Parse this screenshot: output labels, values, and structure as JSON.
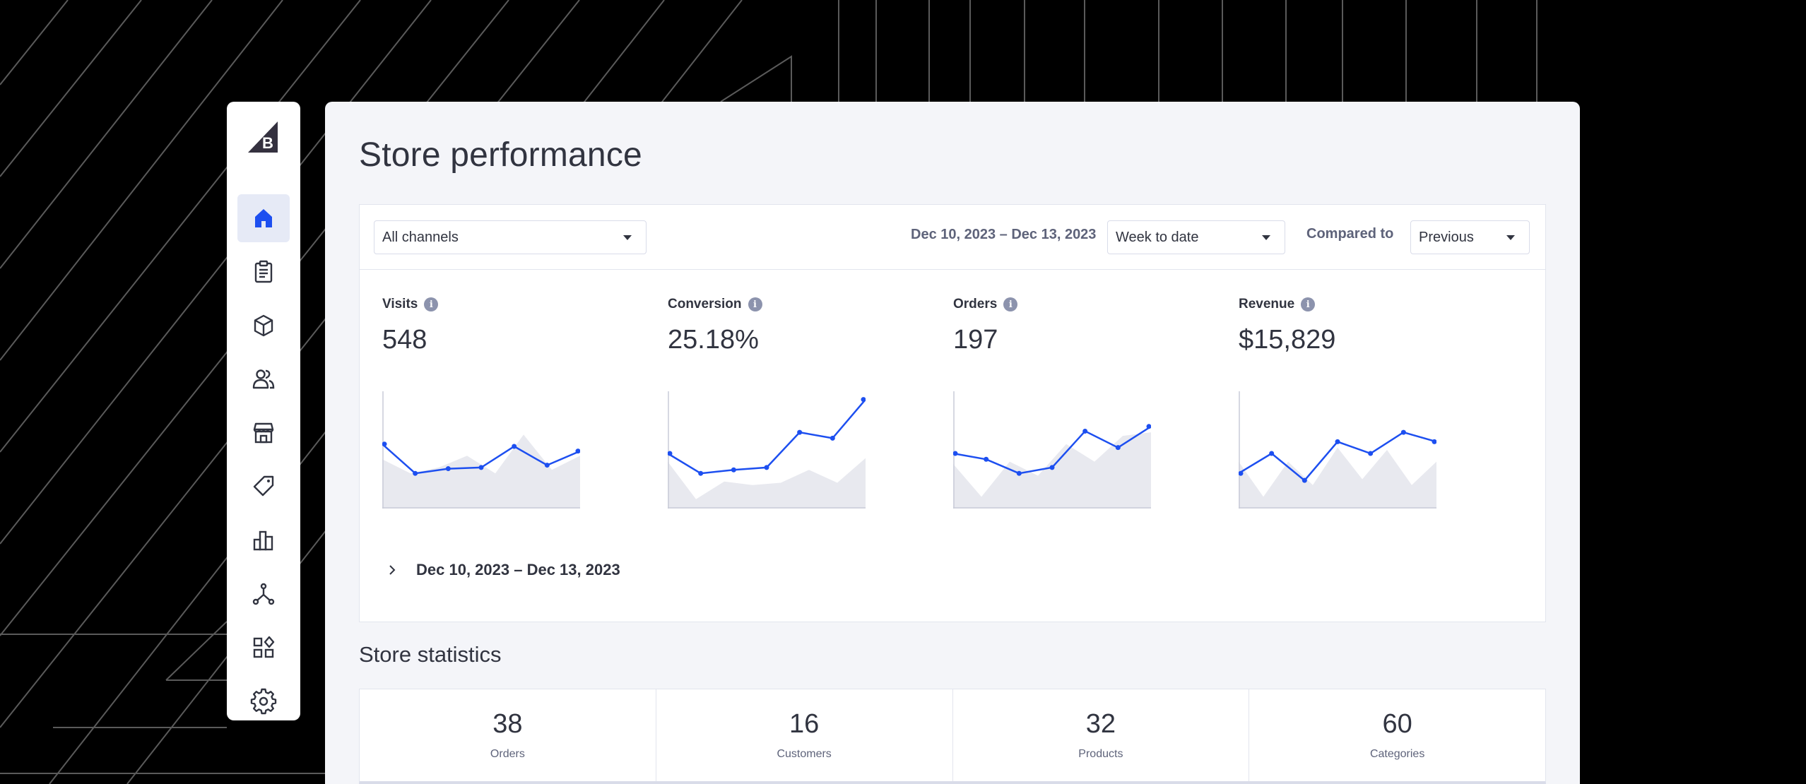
{
  "page": {
    "title": "Store performance"
  },
  "sidebar": {
    "logo": "bigcommerce-logo-icon",
    "items": [
      {
        "name": "home",
        "icon": "home-icon",
        "active": true
      },
      {
        "name": "orders",
        "icon": "clipboard-icon",
        "active": false
      },
      {
        "name": "products",
        "icon": "box-icon",
        "active": false
      },
      {
        "name": "customers",
        "icon": "users-icon",
        "active": false
      },
      {
        "name": "storefront",
        "icon": "storefront-icon",
        "active": false
      },
      {
        "name": "marketing",
        "icon": "tag-icon",
        "active": false
      },
      {
        "name": "analytics",
        "icon": "bar-chart-icon",
        "active": false
      },
      {
        "name": "channels",
        "icon": "network-icon",
        "active": false
      },
      {
        "name": "apps",
        "icon": "apps-icon",
        "active": false
      },
      {
        "name": "settings",
        "icon": "gear-icon",
        "active": false
      }
    ]
  },
  "filters": {
    "channel": "All channels",
    "date_range": "Dec 10, 2023 – Dec 13, 2023",
    "period": "Week to date",
    "compared_label": "Compared to",
    "compared_value": "Previous"
  },
  "metrics": [
    {
      "label": "Visits",
      "value": "548"
    },
    {
      "label": "Conversion",
      "value": "25.18%"
    },
    {
      "label": "Orders",
      "value": "197"
    },
    {
      "label": "Revenue",
      "value": "$15,829"
    }
  ],
  "sparklines": [
    {
      "current": [
        0.55,
        0.3,
        0.34,
        0.35,
        0.53,
        0.37,
        0.49
      ],
      "previous": [
        0.42,
        0.3,
        0.35,
        0.45,
        0.3,
        0.63,
        0.33,
        0.45
      ]
    },
    {
      "current": [
        0.47,
        0.3,
        0.33,
        0.35,
        0.65,
        0.6,
        0.93
      ],
      "previous": [
        0.4,
        0.08,
        0.23,
        0.2,
        0.22,
        0.33,
        0.22,
        0.43
      ]
    },
    {
      "current": [
        0.47,
        0.42,
        0.3,
        0.35,
        0.66,
        0.52,
        0.7
      ],
      "previous": [
        0.38,
        0.1,
        0.4,
        0.28,
        0.55,
        0.4,
        0.62,
        0.65
      ]
    },
    {
      "current": [
        0.3,
        0.47,
        0.24,
        0.57,
        0.47,
        0.65,
        0.57
      ],
      "previous": [
        0.4,
        0.1,
        0.4,
        0.2,
        0.52,
        0.25,
        0.5,
        0.2,
        0.4
      ]
    }
  ],
  "summary": {
    "range": "Dec 10, 2023 – Dec 13, 2023"
  },
  "statistics": {
    "title": "Store statistics",
    "items": [
      {
        "value": "38",
        "label": "Orders"
      },
      {
        "value": "16",
        "label": "Customers"
      },
      {
        "value": "32",
        "label": "Products"
      },
      {
        "value": "60",
        "label": "Categories"
      }
    ]
  },
  "colors": {
    "accent": "#1d4ff0",
    "nav_active_bg": "#e6eaf6",
    "main_bg": "#f4f5f9"
  }
}
